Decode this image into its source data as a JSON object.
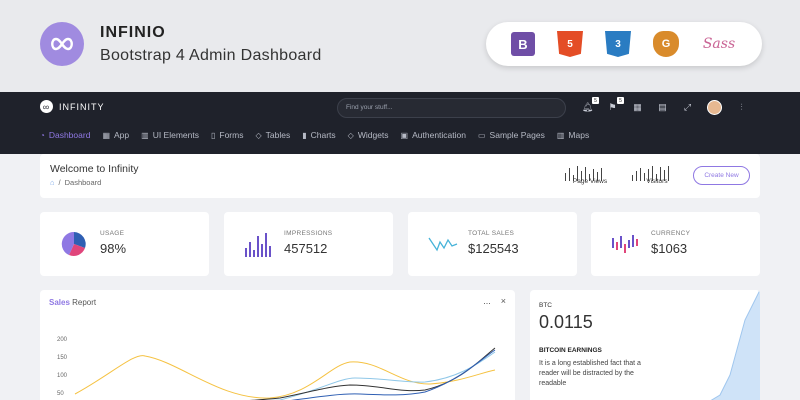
{
  "promo": {
    "title": "INFINIO",
    "subtitle": "Bootstrap 4 Admin Dashboard",
    "tech_icons": [
      {
        "name": "bootstrap-icon",
        "glyph": "B"
      },
      {
        "name": "html5-icon",
        "glyph": "5"
      },
      {
        "name": "css3-icon",
        "glyph": "3"
      },
      {
        "name": "grunt-icon",
        "glyph": "G"
      },
      {
        "name": "sass-icon",
        "glyph": "Sass"
      }
    ]
  },
  "navbar": {
    "brand": "INFINITY",
    "search_placeholder": "Find your stuff...",
    "notifications_count": "5",
    "flags_count": "5"
  },
  "menu": [
    {
      "label": "Dashboard",
      "active": true
    },
    {
      "label": "App"
    },
    {
      "label": "UI Elements"
    },
    {
      "label": "Forms"
    },
    {
      "label": "Tables"
    },
    {
      "label": "Charts"
    },
    {
      "label": "Widgets"
    },
    {
      "label": "Authentication"
    },
    {
      "label": "Sample Pages"
    },
    {
      "label": "Maps"
    }
  ],
  "welcome": {
    "title": "Welcome to Infinity",
    "breadcrumb": "Dashboard",
    "page_views_label": "Page Views",
    "visitors_label": "Visitors",
    "create_button": "Create New"
  },
  "stats": [
    {
      "label": "USAGE",
      "value": "98%"
    },
    {
      "label": "IMPRESSIONS",
      "value": "457512"
    },
    {
      "label": "TOTAL SALES",
      "value": "$125543"
    },
    {
      "label": "CURRENCY",
      "value": "$1063"
    }
  ],
  "sales_report": {
    "title_strong": "Sales",
    "title_rest": " Report",
    "more": "...",
    "close": "×",
    "y_ticks": [
      "200",
      "150",
      "100",
      "50"
    ]
  },
  "btc": {
    "label": "BTC",
    "value": "0.0115",
    "heading": "BITCOIN EARNINGS",
    "text": "It is a long established fact that a reader will be distracted by the readable"
  },
  "colors": {
    "accent": "#8f78e3",
    "navbar": "#1f222b",
    "line_yellow": "#f5c242",
    "line_blue": "#2f5fb3",
    "line_light": "#8fc7e8",
    "line_dark": "#333333"
  }
}
